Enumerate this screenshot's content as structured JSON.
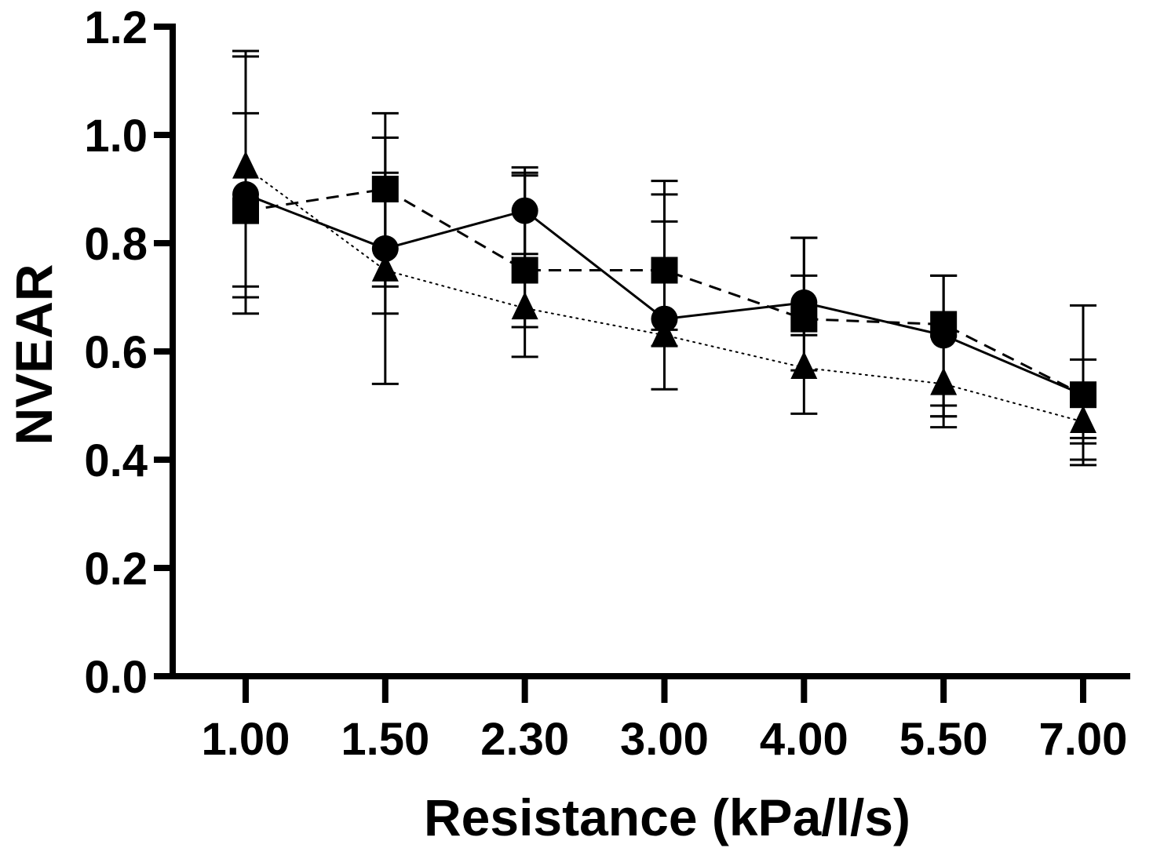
{
  "chart_data": {
    "type": "line",
    "title": "",
    "xlabel": "Resistance (kPa/l/s)",
    "ylabel": "NVEAR",
    "categories": [
      "1.00",
      "1.50",
      "2.30",
      "3.00",
      "4.00",
      "5.50",
      "7.00"
    ],
    "ylim": [
      0,
      1.2
    ],
    "yticks": [
      "0.0",
      "0.2",
      "0.4",
      "0.6",
      "0.8",
      "1.0",
      "1.2"
    ],
    "grid": false,
    "legend": "none",
    "series": [
      {
        "marker": "circle",
        "line_style": "solid",
        "values": [
          0.89,
          0.79,
          0.86,
          0.66,
          0.69,
          0.63,
          0.52
        ],
        "err_low": [
          0.72,
          0.54,
          0.78,
          0.53,
          0.63,
          0.48,
          0.39
        ],
        "err_high": [
          1.155,
          0.995,
          0.94,
          0.89,
          0.74,
          0.74,
          0.685
        ]
      },
      {
        "marker": "square",
        "line_style": "dashed",
        "values": [
          0.86,
          0.9,
          0.75,
          0.75,
          0.66,
          0.65,
          0.52
        ],
        "err_low": [
          0.67,
          0.67,
          0.645,
          0.64,
          0.485,
          0.48,
          0.4
        ],
        "err_high": [
          1.145,
          1.04,
          0.925,
          0.915,
          0.81,
          0.74,
          0.585
        ]
      },
      {
        "marker": "triangle",
        "line_style": "dotted",
        "values": [
          0.94,
          0.75,
          0.68,
          0.63,
          0.57,
          0.54,
          0.47
        ],
        "err_low": [
          0.7,
          0.72,
          0.59,
          0.61,
          0.565,
          0.46,
          0.43
        ],
        "err_high": [
          1.04,
          0.93,
          0.93,
          0.84,
          0.81,
          0.5,
          0.44
        ]
      }
    ]
  }
}
